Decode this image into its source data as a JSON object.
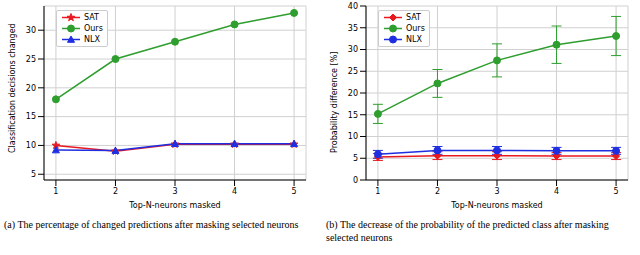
{
  "chart_data": [
    {
      "type": "line",
      "caption": "(a) The percentage of changed predictions after masking selected neurons",
      "x_label": "Top-N-neurons masked",
      "y_label": "Classification decisions changed",
      "x": [
        1,
        2,
        3,
        4,
        5
      ],
      "xlim": [
        0.8,
        5.2
      ],
      "xticks": [
        1,
        2,
        3,
        4,
        5
      ],
      "ylim": [
        4,
        34.2
      ],
      "yticks": [
        5,
        10,
        15,
        20,
        25,
        30
      ],
      "grid": true,
      "legend": "upper left",
      "series": [
        {
          "name": "SAT",
          "color": "#e8191f",
          "marker": "star",
          "values": [
            10,
            9,
            10.2,
            10.2,
            10.2
          ]
        },
        {
          "name": "Ours",
          "color": "#2e9e2e",
          "marker": "circle",
          "values": [
            18,
            25,
            28,
            31,
            33
          ]
        },
        {
          "name": "NLX",
          "color": "#1f2fe0",
          "marker": "triangle",
          "values": [
            9.2,
            9.1,
            10.3,
            10.3,
            10.3
          ]
        }
      ]
    },
    {
      "type": "line",
      "caption": "(b) The decrease of the probability of the predicted class after masking selected neurons",
      "x_label": "Top-N-neurons masked",
      "y_label": "Probability difference [%]",
      "x": [
        1,
        2,
        3,
        4,
        5
      ],
      "xlim": [
        0.8,
        5.2
      ],
      "xticks": [
        1,
        2,
        3,
        4,
        5
      ],
      "ylim": [
        0,
        40
      ],
      "yticks": [
        0,
        5,
        10,
        15,
        20,
        25,
        30,
        35,
        40
      ],
      "grid": true,
      "legend": "upper left",
      "series": [
        {
          "name": "SAT",
          "color": "#e8191f",
          "marker": "diamond",
          "values": [
            5.3,
            5.6,
            5.6,
            5.5,
            5.5
          ],
          "errors": [
            0.8,
            0.9,
            0.9,
            0.8,
            0.8
          ]
        },
        {
          "name": "Ours",
          "color": "#2e9e2e",
          "marker": "circle",
          "values": [
            15.2,
            22.2,
            27.5,
            31.1,
            33.1
          ],
          "errors": [
            2.2,
            3.2,
            3.8,
            4.3,
            4.5
          ]
        },
        {
          "name": "NLX",
          "color": "#1f2fe0",
          "marker": "circle",
          "values": [
            5.9,
            6.8,
            6.8,
            6.7,
            6.7
          ],
          "errors": [
            0.9,
            0.9,
            0.9,
            0.8,
            0.8
          ]
        }
      ]
    }
  ]
}
